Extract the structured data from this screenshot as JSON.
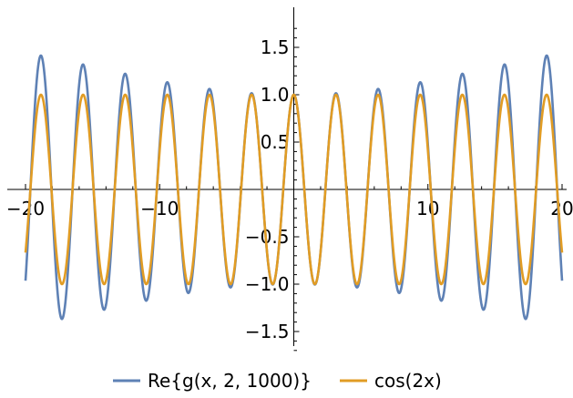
{
  "chart_data": {
    "type": "line",
    "title": "",
    "xlabel": "",
    "ylabel": "",
    "xlim": [
      -20,
      20
    ],
    "ylim": [
      -1.75,
      1.85
    ],
    "x_ticks": [
      -20,
      -10,
      10,
      20
    ],
    "x_tick_labels": [
      "−20",
      "−10",
      "10",
      "20"
    ],
    "y_ticks": [
      -1.5,
      -1.0,
      -0.5,
      0.5,
      1.0,
      1.5
    ],
    "y_tick_labels": [
      "−1.5",
      "−1.0",
      "−0.5",
      "0.5",
      "1.0",
      "1.5"
    ],
    "legend_position": "bottom",
    "grid": false,
    "series": [
      {
        "name": "Re{g(x, 2, 1000)}",
        "color": "#5e81b5",
        "formula": "cos(2x) scaled by envelope",
        "x": [
          -20,
          -18.85,
          -15.71,
          -12.57,
          -9.42,
          -6.28,
          -3.14,
          0,
          3.14,
          6.28,
          9.42,
          12.57,
          15.71,
          18.85,
          20
        ],
        "y": [
          -1.2,
          1.7,
          1.45,
          1.27,
          1.14,
          1.06,
          1.01,
          1.0,
          1.01,
          1.06,
          1.14,
          1.27,
          1.45,
          1.7,
          -1.2
        ],
        "troughs": [
          -1.57,
          -1.34,
          -1.19,
          -1.08,
          -1.02,
          -1.0,
          -1.0,
          -1.02,
          -1.08,
          -1.19,
          -1.34,
          -1.57
        ]
      },
      {
        "name": "cos(2x)",
        "color": "#e19c24",
        "x": [
          -20,
          -18.85,
          -15.71,
          -12.57,
          -9.42,
          -6.28,
          -3.14,
          0,
          3.14,
          6.28,
          9.42,
          12.57,
          15.71,
          18.85,
          20
        ],
        "y": [
          -0.67,
          1.0,
          1.0,
          1.0,
          1.0,
          1.0,
          1.0,
          1.0,
          1.0,
          1.0,
          1.0,
          1.0,
          1.0,
          1.0,
          -0.67
        ]
      }
    ]
  }
}
